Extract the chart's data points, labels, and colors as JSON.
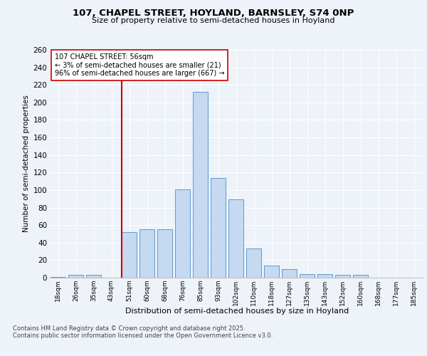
{
  "title_line1": "107, CHAPEL STREET, HOYLAND, BARNSLEY, S74 0NP",
  "title_line2": "Size of property relative to semi-detached houses in Hoyland",
  "xlabel": "Distribution of semi-detached houses by size in Hoyland",
  "ylabel": "Number of semi-detached properties",
  "categories": [
    "18sqm",
    "26sqm",
    "35sqm",
    "43sqm",
    "51sqm",
    "60sqm",
    "68sqm",
    "76sqm",
    "85sqm",
    "93sqm",
    "102sqm",
    "110sqm",
    "118sqm",
    "127sqm",
    "135sqm",
    "143sqm",
    "152sqm",
    "160sqm",
    "168sqm",
    "177sqm",
    "185sqm"
  ],
  "values": [
    1,
    3,
    3,
    0,
    52,
    55,
    55,
    101,
    212,
    114,
    89,
    33,
    14,
    10,
    4,
    4,
    3,
    3,
    0,
    0,
    0
  ],
  "bar_color": "#c5d9f0",
  "bar_edge_color": "#5b9bd5",
  "vline_color": "#cc0000",
  "annotation_text": "107 CHAPEL STREET: 56sqm\n← 3% of semi-detached houses are smaller (21)\n96% of semi-detached houses are larger (667) →",
  "ylim": [
    0,
    260
  ],
  "yticks": [
    0,
    20,
    40,
    60,
    80,
    100,
    120,
    140,
    160,
    180,
    200,
    220,
    240,
    260
  ],
  "footer_line1": "Contains HM Land Registry data © Crown copyright and database right 2025.",
  "footer_line2": "Contains public sector information licensed under the Open Government Licence v3.0.",
  "background_color": "#eef2f9",
  "plot_bg_color": "#eef2f9",
  "grid_color": "#ffffff"
}
